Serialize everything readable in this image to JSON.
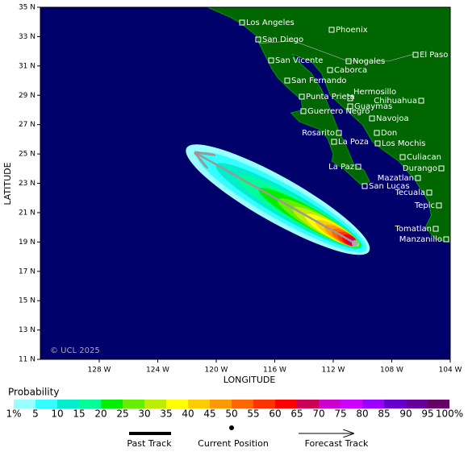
{
  "map": {
    "y_label": "LATITUDE",
    "x_label": "LONGITUDE",
    "lat_ticks": [
      {
        "value": 35,
        "label": "35 N"
      },
      {
        "value": 33,
        "label": "33 N"
      },
      {
        "value": 31,
        "label": "31 N"
      },
      {
        "value": 29,
        "label": "29 N"
      },
      {
        "value": 27,
        "label": "27 N"
      },
      {
        "value": 25,
        "label": "25 N"
      },
      {
        "value": 23,
        "label": "23 N"
      },
      {
        "value": 21,
        "label": "21 N"
      },
      {
        "value": 19,
        "label": "19 N"
      },
      {
        "value": 17,
        "label": "17 N"
      },
      {
        "value": 15,
        "label": "15 N"
      },
      {
        "value": 13,
        "label": "13 N"
      },
      {
        "value": 11,
        "label": "11 N"
      }
    ],
    "lon_ticks": [
      {
        "value": -128,
        "label": "128 W"
      },
      {
        "value": -124,
        "label": "124 W"
      },
      {
        "value": -120,
        "label": "120 W"
      },
      {
        "value": -116,
        "label": "116 W"
      },
      {
        "value": -112,
        "label": "112 W"
      },
      {
        "value": -108,
        "label": "108 W"
      },
      {
        "value": -104,
        "label": "104 W"
      }
    ],
    "cities": [
      "Los Angeles",
      "San Diego",
      "Phoenix",
      "San Vicente",
      "Nogales",
      "El Paso",
      "Caborca",
      "San Fernando",
      "Hermosillo",
      "Punta Prieta",
      "Chihuahua",
      "Guaymas",
      "Guerrero Negro",
      "Navojoa",
      "Rosarito",
      "Don",
      "La Poza",
      "Los Mochis",
      "Culiacan",
      "La Paz",
      "Durango",
      "Mazatlan",
      "San Lucas",
      "Tecuala",
      "Tepic",
      "Tomatlan",
      "Manzanillo"
    ],
    "copyright": "© UCL 2025"
  },
  "legend": {
    "title": "Probability",
    "labels": [
      "1%",
      "5",
      "10",
      "15",
      "20",
      "25",
      "30",
      "35",
      "40",
      "45",
      "50",
      "55",
      "60",
      "65",
      "70",
      "75",
      "80",
      "85",
      "90",
      "95",
      "100%"
    ],
    "colors": [
      "#99ffff",
      "#33ffff",
      "#00eecc",
      "#00ff99",
      "#00ee00",
      "#66ee00",
      "#bbee00",
      "#ffff00",
      "#ffcc00",
      "#ff9900",
      "#ff6600",
      "#ff3300",
      "#ff0000",
      "#cc0055",
      "#cc00cc",
      "#cc00ff",
      "#9900ff",
      "#6600cc",
      "#660099",
      "#660066"
    ],
    "items": [
      "Past Track",
      "Current Position",
      "Forecast Track"
    ]
  }
}
